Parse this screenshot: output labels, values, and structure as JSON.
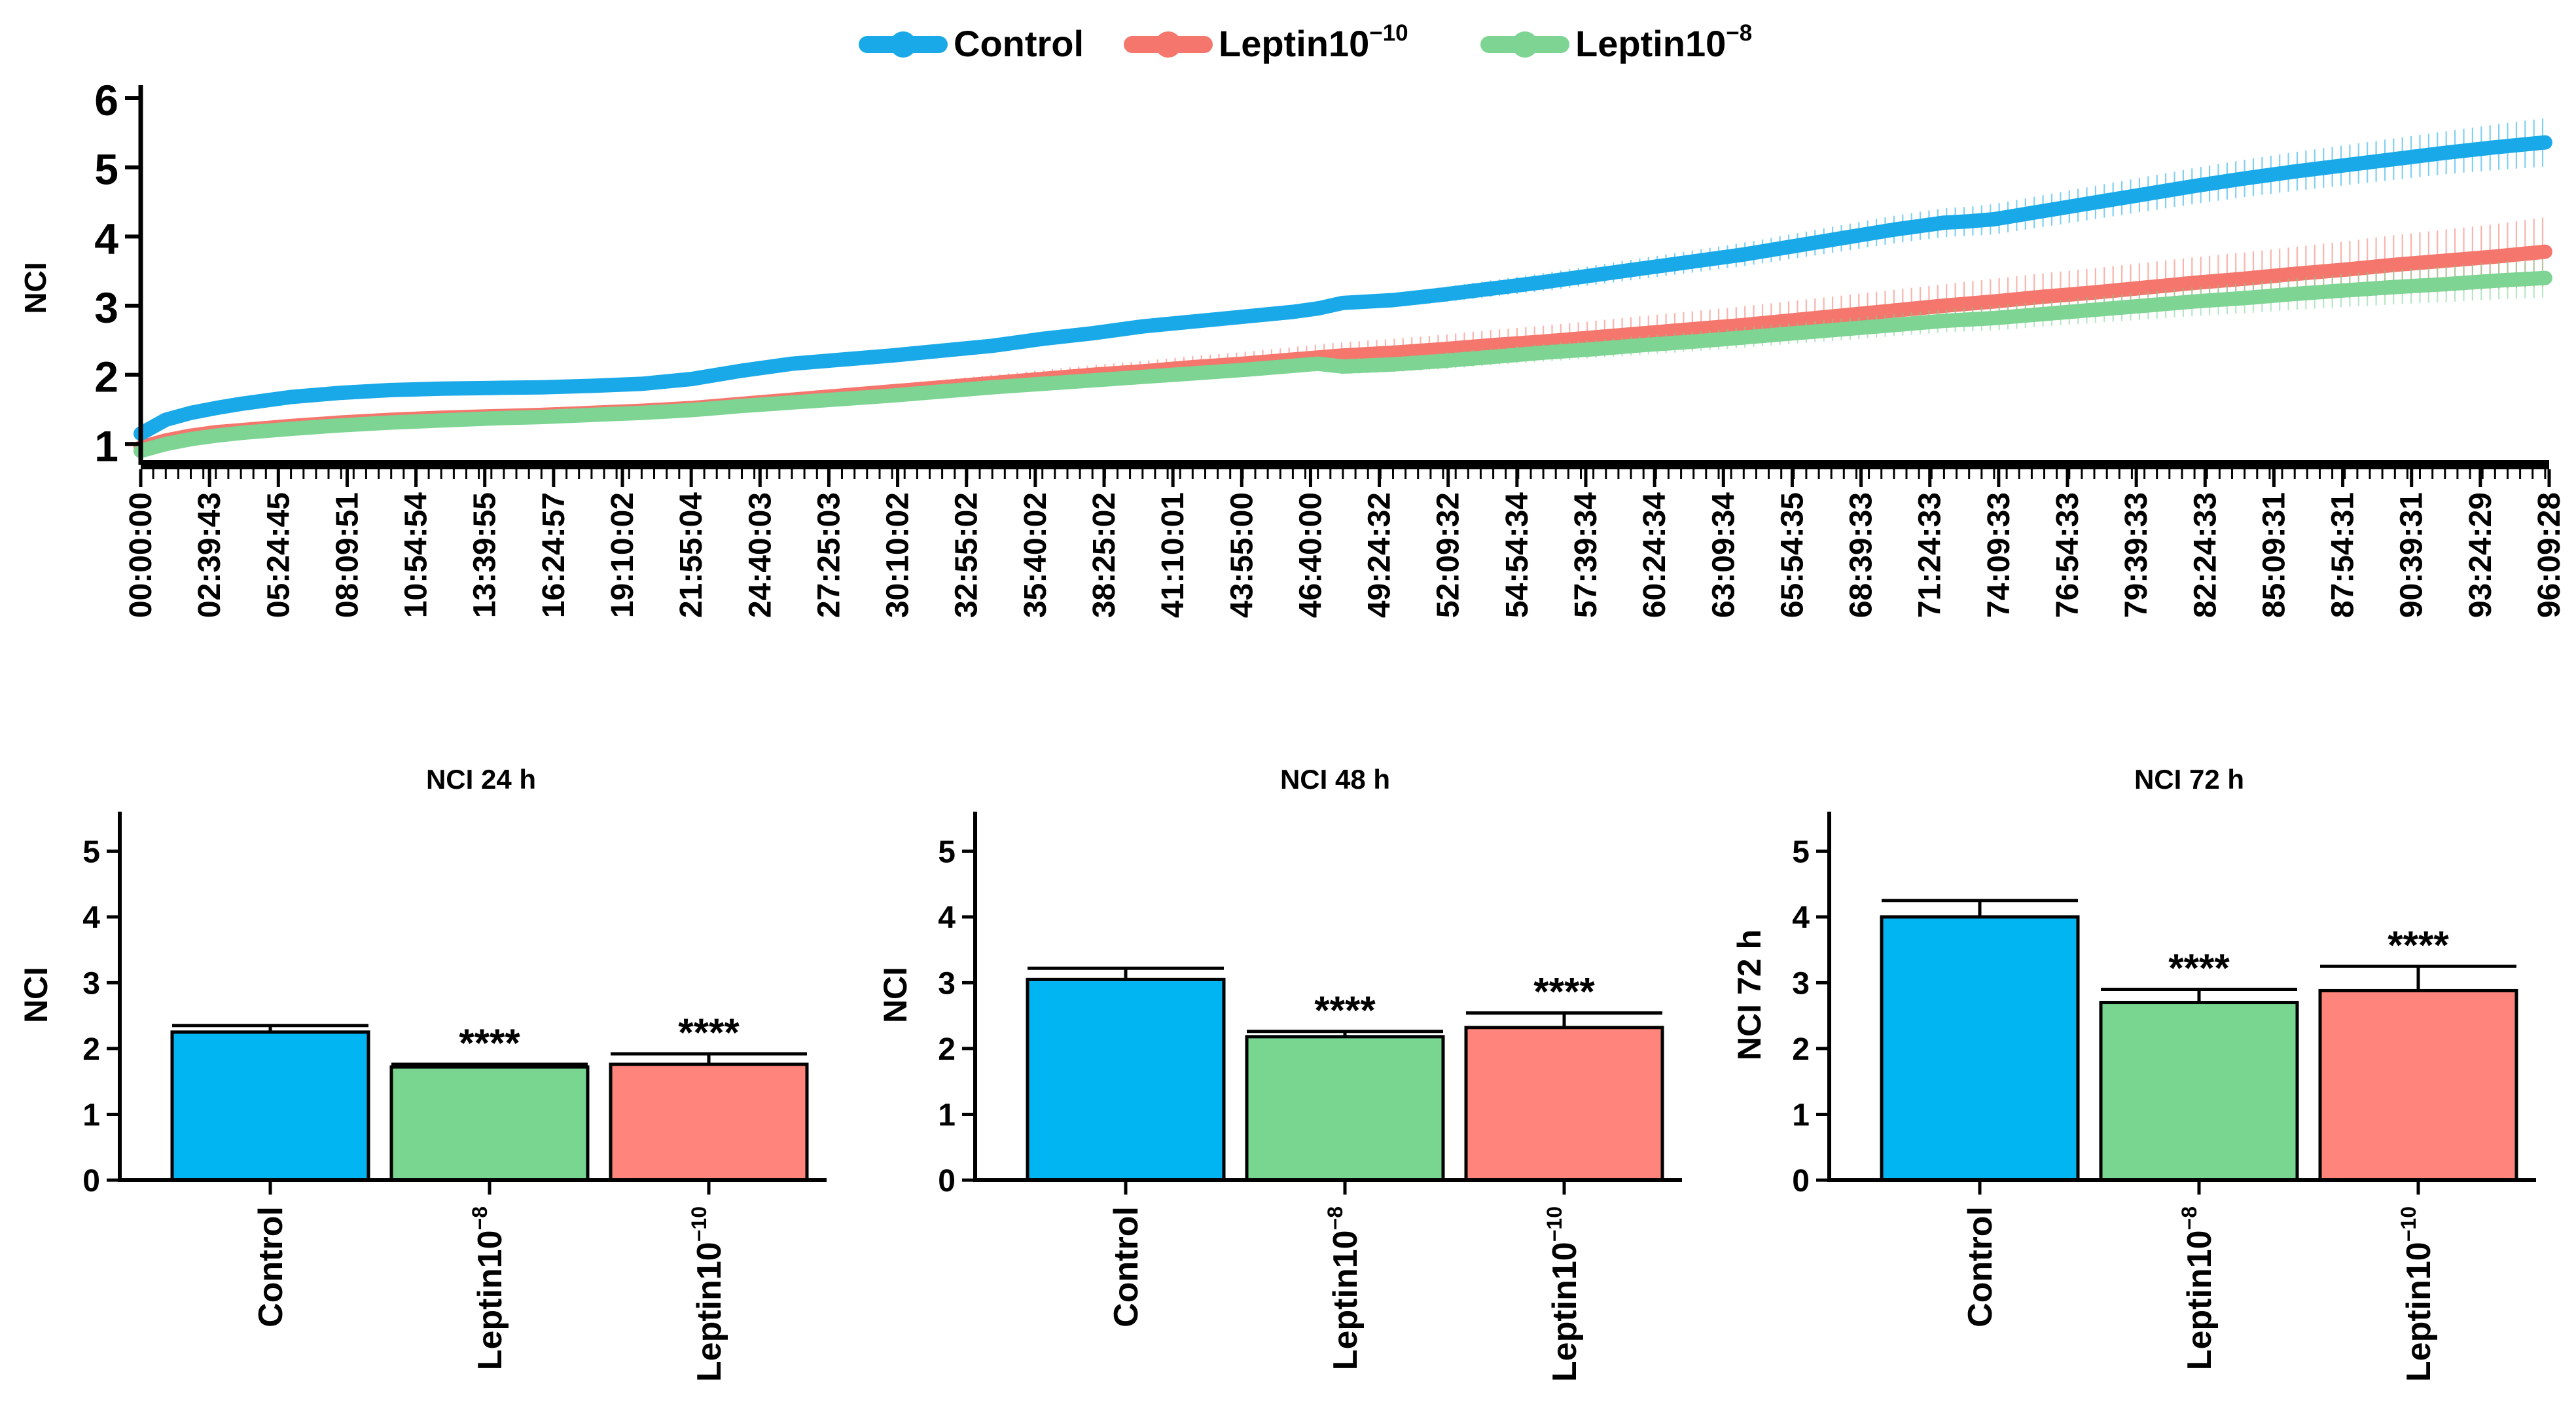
{
  "chart_data": [
    {
      "type": "line",
      "title": "",
      "xlabel": "",
      "ylabel": "NCI",
      "ylim": [
        0.7,
        6
      ],
      "yticks": [
        1,
        2,
        3,
        4,
        5,
        6
      ],
      "xlim_hours": [
        0,
        96.16
      ],
      "legend_position": "top",
      "grid": false,
      "x_tick_labels": [
        "00:00:00",
        "02:39:43",
        "05:24:45",
        "08:09:51",
        "10:54:54",
        "13:39:55",
        "16:24:57",
        "19:10:02",
        "21:55:04",
        "24:40:03",
        "27:25:03",
        "30:10:02",
        "32:55:02",
        "35:40:02",
        "38:25:02",
        "41:10:01",
        "43:55:00",
        "46:40:00",
        "49:24:32",
        "52:09:32",
        "54:54:34",
        "57:39:34",
        "60:24:34",
        "63:09:34",
        "65:54:35",
        "68:39:33",
        "71:24:33",
        "74:09:33",
        "76:54:33",
        "79:39:33",
        "82:24:33",
        "85:09:31",
        "87:54:31",
        "90:39:31",
        "93:24:29",
        "96:09:28"
      ],
      "x": [
        0,
        1,
        2,
        3,
        4,
        6,
        8,
        10,
        12,
        14,
        16,
        18,
        20,
        22,
        23,
        24,
        26,
        28,
        30,
        32,
        34,
        36,
        38,
        40,
        42,
        44,
        46,
        47,
        48,
        50,
        52,
        54,
        56,
        58,
        60,
        62,
        64,
        66,
        68,
        70,
        72,
        73,
        74,
        76,
        78,
        80,
        82,
        84,
        86,
        88,
        90,
        92,
        94,
        96
      ],
      "series": [
        {
          "name": "Control",
          "label_base": "Control",
          "label_exp": "",
          "color": "#1AA9E8",
          "values": [
            1.15,
            1.35,
            1.45,
            1.52,
            1.58,
            1.68,
            1.74,
            1.78,
            1.8,
            1.81,
            1.82,
            1.84,
            1.87,
            1.94,
            2.0,
            2.06,
            2.16,
            2.22,
            2.28,
            2.35,
            2.42,
            2.52,
            2.6,
            2.7,
            2.77,
            2.84,
            2.91,
            2.96,
            3.04,
            3.08,
            3.16,
            3.25,
            3.34,
            3.44,
            3.54,
            3.64,
            3.74,
            3.86,
            3.98,
            4.1,
            4.2,
            4.22,
            4.25,
            4.37,
            4.49,
            4.61,
            4.73,
            4.84,
            4.94,
            5.03,
            5.12,
            5.21,
            5.29,
            5.36
          ],
          "err": [
            0.02,
            0.02,
            0.02,
            0.03,
            0.03,
            0.03,
            0.03,
            0.04,
            0.04,
            0.04,
            0.04,
            0.04,
            0.05,
            0.05,
            0.05,
            0.06,
            0.06,
            0.06,
            0.06,
            0.07,
            0.07,
            0.07,
            0.08,
            0.08,
            0.08,
            0.09,
            0.09,
            0.09,
            0.1,
            0.1,
            0.11,
            0.12,
            0.13,
            0.14,
            0.15,
            0.16,
            0.17,
            0.18,
            0.19,
            0.2,
            0.21,
            0.21,
            0.22,
            0.23,
            0.24,
            0.25,
            0.26,
            0.27,
            0.28,
            0.29,
            0.3,
            0.31,
            0.33,
            0.35
          ]
        },
        {
          "name": "Leptin10−10",
          "label_base": "Leptin10",
          "label_exp": "−10",
          "color": "#F4766C",
          "values": [
            0.95,
            1.05,
            1.12,
            1.17,
            1.2,
            1.26,
            1.31,
            1.35,
            1.38,
            1.4,
            1.42,
            1.45,
            1.48,
            1.52,
            1.55,
            1.58,
            1.64,
            1.7,
            1.76,
            1.82,
            1.88,
            1.94,
            2.0,
            2.05,
            2.11,
            2.16,
            2.22,
            2.25,
            2.28,
            2.32,
            2.37,
            2.43,
            2.48,
            2.54,
            2.6,
            2.66,
            2.72,
            2.79,
            2.86,
            2.93,
            3.0,
            3.03,
            3.06,
            3.13,
            3.19,
            3.26,
            3.33,
            3.39,
            3.46,
            3.52,
            3.59,
            3.65,
            3.71,
            3.78
          ],
          "err": [
            0.02,
            0.02,
            0.02,
            0.02,
            0.03,
            0.03,
            0.03,
            0.03,
            0.04,
            0.04,
            0.05,
            0.05,
            0.06,
            0.06,
            0.06,
            0.07,
            0.08,
            0.09,
            0.1,
            0.11,
            0.12,
            0.13,
            0.14,
            0.15,
            0.16,
            0.17,
            0.18,
            0.19,
            0.19,
            0.2,
            0.21,
            0.22,
            0.23,
            0.24,
            0.25,
            0.26,
            0.27,
            0.28,
            0.29,
            0.3,
            0.31,
            0.32,
            0.33,
            0.34,
            0.35,
            0.36,
            0.37,
            0.38,
            0.39,
            0.41,
            0.43,
            0.45,
            0.47,
            0.5
          ]
        },
        {
          "name": "Leptin10−8",
          "label_base": "Leptin10",
          "label_exp": "−8",
          "color": "#7DD493",
          "values": [
            0.9,
            1.0,
            1.07,
            1.12,
            1.16,
            1.22,
            1.27,
            1.31,
            1.34,
            1.37,
            1.39,
            1.42,
            1.45,
            1.49,
            1.52,
            1.55,
            1.6,
            1.65,
            1.7,
            1.76,
            1.82,
            1.87,
            1.92,
            1.97,
            2.02,
            2.07,
            2.13,
            2.16,
            2.12,
            2.15,
            2.2,
            2.26,
            2.32,
            2.37,
            2.43,
            2.48,
            2.54,
            2.6,
            2.66,
            2.72,
            2.78,
            2.8,
            2.82,
            2.88,
            2.94,
            3.0,
            3.06,
            3.11,
            3.17,
            3.22,
            3.27,
            3.31,
            3.36,
            3.4
          ],
          "err": [
            0.02,
            0.02,
            0.02,
            0.02,
            0.02,
            0.03,
            0.03,
            0.03,
            0.03,
            0.03,
            0.04,
            0.04,
            0.04,
            0.04,
            0.05,
            0.05,
            0.05,
            0.06,
            0.06,
            0.07,
            0.07,
            0.08,
            0.08,
            0.09,
            0.09,
            0.1,
            0.1,
            0.11,
            0.11,
            0.11,
            0.12,
            0.12,
            0.13,
            0.13,
            0.14,
            0.14,
            0.15,
            0.15,
            0.16,
            0.16,
            0.17,
            0.17,
            0.18,
            0.18,
            0.19,
            0.2,
            0.21,
            0.22,
            0.23,
            0.24,
            0.25,
            0.26,
            0.27,
            0.28
          ]
        }
      ]
    },
    {
      "type": "bar",
      "title": "NCI 24 h",
      "ylabel": "NCI",
      "ylim": [
        0,
        5.6
      ],
      "yticks": [
        0,
        1,
        2,
        3,
        4,
        5
      ],
      "categories": [
        {
          "base": "Control",
          "exp": "",
          "color": "#00B5F1"
        },
        {
          "base": "Leptin10",
          "exp": "−8",
          "color": "#78D690"
        },
        {
          "base": "Leptin10",
          "exp": "−10",
          "color": "#FF857C"
        }
      ],
      "values": [
        2.25,
        1.72,
        1.76
      ],
      "errors": [
        0.1,
        0.04,
        0.16
      ],
      "annotations": [
        "",
        "****",
        "****"
      ]
    },
    {
      "type": "bar",
      "title": "NCI 48 h",
      "ylabel": "NCI",
      "ylim": [
        0,
        5.6
      ],
      "yticks": [
        0,
        1,
        2,
        3,
        4,
        5
      ],
      "categories": [
        {
          "base": "Control",
          "exp": "",
          "color": "#00B5F1"
        },
        {
          "base": "Leptin10",
          "exp": "−8",
          "color": "#78D690"
        },
        {
          "base": "Leptin10",
          "exp": "−10",
          "color": "#FF857C"
        }
      ],
      "values": [
        3.05,
        2.18,
        2.32
      ],
      "errors": [
        0.17,
        0.08,
        0.22
      ],
      "annotations": [
        "",
        "****",
        "****"
      ]
    },
    {
      "type": "bar",
      "title": "NCI 72 h",
      "ylabel": "NCI 72 h",
      "ylim": [
        0,
        5.6
      ],
      "yticks": [
        0,
        1,
        2,
        3,
        4,
        5
      ],
      "categories": [
        {
          "base": "Control",
          "exp": "",
          "color": "#00B5F1"
        },
        {
          "base": "Leptin10",
          "exp": "−8",
          "color": "#78D690"
        },
        {
          "base": "Leptin10",
          "exp": "−10",
          "color": "#FF857C"
        }
      ],
      "values": [
        4.0,
        2.7,
        2.88
      ],
      "errors": [
        0.25,
        0.2,
        0.37
      ],
      "annotations": [
        "",
        "****",
        "****"
      ]
    }
  ]
}
